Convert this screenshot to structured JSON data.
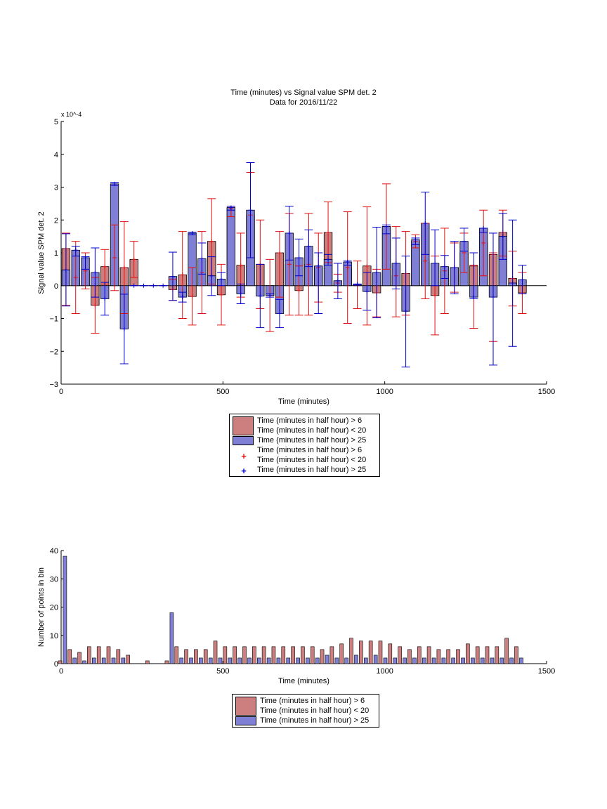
{
  "colors": {
    "red": "#cd7e7e",
    "red_edge": "#e01010",
    "blue": "#7f7fd5",
    "blue_edge": "#0000cc",
    "axis": "#000000"
  },
  "chart_data": [
    {
      "type": "bar",
      "title": "Time (minutes) vs Signal value SPM det. 2",
      "subtitle": "Data for 2016/11/22",
      "xlabel": "Time (minutes)",
      "ylabel": "Signal value SPM det. 2",
      "xlim": [
        0,
        1500
      ],
      "ylim": [
        -3,
        5
      ],
      "yexponent": "x 10^-4",
      "xticks": [
        "0",
        "500",
        "1000",
        "1500"
      ],
      "yticks": [
        "−3",
        "−2",
        "−1",
        "0",
        "1",
        "2",
        "3",
        "4",
        "5"
      ],
      "series": [
        {
          "name": "Time (minutes in half hour) > 6 Time (minutes in half hour) < 20",
          "color": "red",
          "points": [
            {
              "x": 15,
              "y": 1.13,
              "lo": -0.6,
              "hi": 1.6
            },
            {
              "x": 45,
              "y": 0.25,
              "lo": -0.85,
              "hi": 1.35
            },
            {
              "x": 75,
              "y": 0.45,
              "lo": -0.1,
              "hi": 1.0
            },
            {
              "x": 105,
              "y": -0.6,
              "lo": -1.45,
              "hi": 0.25
            },
            {
              "x": 135,
              "y": 0.58,
              "lo": 0.05,
              "hi": 1.1
            },
            {
              "x": 165,
              "y": 0.85,
              "lo": -0.15,
              "hi": 1.85
            },
            {
              "x": 195,
              "y": 0.55,
              "lo": -0.85,
              "hi": 1.95
            },
            {
              "x": 225,
              "y": 0.8,
              "lo": 0.25,
              "hi": 1.35
            },
            {
              "x": 345,
              "y": -0.12,
              "lo": -0.45,
              "hi": 0.2
            },
            {
              "x": 375,
              "y": 0.33,
              "lo": -1.0,
              "hi": 1.65
            },
            {
              "x": 405,
              "y": -0.33,
              "lo": -1.2,
              "hi": 0.55
            },
            {
              "x": 435,
              "y": 0.4,
              "lo": -0.85,
              "hi": 1.65
            },
            {
              "x": 465,
              "y": 1.35,
              "lo": 0.05,
              "hi": 2.65
            },
            {
              "x": 495,
              "y": -0.28,
              "lo": -1.2,
              "hi": 0.65
            },
            {
              "x": 525,
              "y": 2.35,
              "lo": 2.1,
              "hi": 2.42
            },
            {
              "x": 555,
              "y": 0.62,
              "lo": -0.35,
              "hi": 1.6
            },
            {
              "x": 585,
              "y": 2.15,
              "lo": 0.85,
              "hi": 3.45
            },
            {
              "x": 615,
              "y": 0.65,
              "lo": -0.7,
              "hi": 2.0
            },
            {
              "x": 645,
              "y": -0.3,
              "lo": -1.4,
              "hi": 0.8
            },
            {
              "x": 675,
              "y": 1.0,
              "lo": -0.35,
              "hi": 1.65
            },
            {
              "x": 705,
              "y": 0.65,
              "lo": -0.9,
              "hi": 2.2
            },
            {
              "x": 735,
              "y": -0.15,
              "lo": -0.9,
              "hi": 0.6
            },
            {
              "x": 765,
              "y": 0.65,
              "lo": -0.9,
              "hi": 2.2
            },
            {
              "x": 795,
              "y": 0.55,
              "lo": -0.5,
              "hi": 1.6
            },
            {
              "x": 825,
              "y": 1.62,
              "lo": 0.7,
              "hi": 2.55
            },
            {
              "x": 855,
              "y": 0.08,
              "lo": -0.2,
              "hi": 0.35
            },
            {
              "x": 885,
              "y": 0.55,
              "lo": -1.15,
              "hi": 2.25
            },
            {
              "x": 915,
              "y": 0.03,
              "lo": -0.7,
              "hi": 0.75
            },
            {
              "x": 945,
              "y": 0.6,
              "lo": -1.2,
              "hi": 2.4
            },
            {
              "x": 975,
              "y": -0.22,
              "lo": -0.95,
              "hi": 0.5
            },
            {
              "x": 1005,
              "y": 1.8,
              "lo": 0.5,
              "hi": 3.1
            },
            {
              "x": 1035,
              "y": 0.3,
              "lo": -0.95,
              "hi": 1.8
            },
            {
              "x": 1065,
              "y": 0.37,
              "lo": -0.9,
              "hi": 1.65
            },
            {
              "x": 1095,
              "y": 1.35,
              "lo": 1.15,
              "hi": 1.55
            },
            {
              "x": 1125,
              "y": 0.75,
              "lo": -0.4,
              "hi": 1.9
            },
            {
              "x": 1155,
              "y": -0.3,
              "lo": -1.5,
              "hi": 0.9
            },
            {
              "x": 1185,
              "y": 0.45,
              "lo": -0.85,
              "hi": 1.75
            },
            {
              "x": 1215,
              "y": 0.55,
              "lo": -0.2,
              "hi": 1.3
            },
            {
              "x": 1245,
              "y": 1.0,
              "lo": 0.4,
              "hi": 1.6
            },
            {
              "x": 1275,
              "y": 0.6,
              "lo": -1.3,
              "hi": 0.62
            },
            {
              "x": 1305,
              "y": 1.3,
              "lo": 0.3,
              "hi": 2.3
            },
            {
              "x": 1335,
              "y": 0.95,
              "lo": -1.7,
              "hi": 1.0
            },
            {
              "x": 1365,
              "y": 1.62,
              "lo": 0.9,
              "hi": 2.3
            },
            {
              "x": 1395,
              "y": 0.22,
              "lo": -0.62,
              "hi": 1.05
            },
            {
              "x": 1425,
              "y": -0.22,
              "lo": -0.85,
              "hi": 0.4
            }
          ]
        },
        {
          "name": "Time (minutes in half hour) > 25",
          "color": "blue",
          "points": [
            {
              "x": 15,
              "y": 0.48,
              "lo": -0.62,
              "hi": 1.58
            },
            {
              "x": 45,
              "y": 1.08,
              "lo": 0.9,
              "hi": 1.2
            },
            {
              "x": 75,
              "y": 0.85,
              "lo": 0.5,
              "hi": 0.88
            },
            {
              "x": 105,
              "y": 0.4,
              "lo": -0.35,
              "hi": 1.15
            },
            {
              "x": 135,
              "y": -0.4,
              "lo": -0.9,
              "hi": 0.1
            },
            {
              "x": 165,
              "y": 3.1,
              "lo": 3.05,
              "hi": 3.15
            },
            {
              "x": 195,
              "y": -1.32,
              "lo": -2.38,
              "hi": -0.26
            },
            {
              "x": 225,
              "y": 0.0,
              "lo": 0.0,
              "hi": 0.0
            },
            {
              "x": 255,
              "y": 0.0,
              "lo": 0.0,
              "hi": 0.0
            },
            {
              "x": 285,
              "y": 0.0,
              "lo": 0.0,
              "hi": 0.0
            },
            {
              "x": 315,
              "y": 0.0,
              "lo": 0.0,
              "hi": 0.0
            },
            {
              "x": 345,
              "y": 0.28,
              "lo": -0.45,
              "hi": 1.02
            },
            {
              "x": 375,
              "y": -0.35,
              "lo": -0.5,
              "hi": -0.2
            },
            {
              "x": 405,
              "y": 1.6,
              "lo": 1.55,
              "hi": 1.63
            },
            {
              "x": 435,
              "y": 0.82,
              "lo": 0.35,
              "hi": 1.3
            },
            {
              "x": 465,
              "y": 0.3,
              "lo": -0.3,
              "hi": 0.88
            },
            {
              "x": 495,
              "y": 0.2,
              "lo": 0.0,
              "hi": 0.4
            },
            {
              "x": 525,
              "y": 2.38,
              "lo": 2.3,
              "hi": 2.42
            },
            {
              "x": 555,
              "y": -0.25,
              "lo": -0.55,
              "hi": 0.05
            },
            {
              "x": 585,
              "y": 2.3,
              "lo": 0.85,
              "hi": 3.75
            },
            {
              "x": 615,
              "y": -0.32,
              "lo": -1.28,
              "hi": 0.65
            },
            {
              "x": 645,
              "y": -0.3,
              "lo": -0.35,
              "hi": -0.25
            },
            {
              "x": 675,
              "y": -0.85,
              "lo": -1.28,
              "hi": -0.42
            },
            {
              "x": 705,
              "y": 1.6,
              "lo": 0.78,
              "hi": 2.42
            },
            {
              "x": 735,
              "y": 0.85,
              "lo": 0.3,
              "hi": 1.42
            },
            {
              "x": 765,
              "y": 1.2,
              "lo": 0.58,
              "hi": 1.7
            },
            {
              "x": 795,
              "y": 0.6,
              "lo": -0.85,
              "hi": 1.0
            },
            {
              "x": 825,
              "y": 0.8,
              "lo": 0.62,
              "hi": 0.95
            },
            {
              "x": 855,
              "y": 0.15,
              "lo": -0.4,
              "hi": 0.68
            },
            {
              "x": 885,
              "y": 0.72,
              "lo": 0.62,
              "hi": 0.75
            },
            {
              "x": 915,
              "y": 0.05,
              "lo": 0.02,
              "hi": 0.05
            },
            {
              "x": 945,
              "y": -0.18,
              "lo": -0.75,
              "hi": 0.4
            },
            {
              "x": 975,
              "y": 0.4,
              "lo": -0.98,
              "hi": 1.78
            },
            {
              "x": 1005,
              "y": 1.8,
              "lo": 1.58,
              "hi": 1.85
            },
            {
              "x": 1035,
              "y": 0.68,
              "lo": -0.1,
              "hi": 1.45
            },
            {
              "x": 1065,
              "y": -0.78,
              "lo": -2.48,
              "hi": 0.9
            },
            {
              "x": 1095,
              "y": 1.4,
              "lo": 1.25,
              "hi": 1.45
            },
            {
              "x": 1125,
              "y": 1.9,
              "lo": 0.95,
              "hi": 2.85
            },
            {
              "x": 1155,
              "y": 0.68,
              "lo": 0.0,
              "hi": 1.7
            },
            {
              "x": 1185,
              "y": 0.58,
              "lo": 0.22,
              "hi": 0.92
            },
            {
              "x": 1215,
              "y": 0.55,
              "lo": -0.25,
              "hi": 1.35
            },
            {
              "x": 1245,
              "y": 1.35,
              "lo": 1.05,
              "hi": 1.75
            },
            {
              "x": 1275,
              "y": -0.35,
              "lo": -0.4,
              "hi": 1.0
            },
            {
              "x": 1305,
              "y": 1.75,
              "lo": 1.62,
              "hi": 1.75
            },
            {
              "x": 1335,
              "y": -0.35,
              "lo": -2.42,
              "hi": 1.6
            },
            {
              "x": 1365,
              "y": 1.5,
              "lo": 0.8,
              "hi": 2.2
            },
            {
              "x": 1395,
              "y": 0.08,
              "lo": -1.85,
              "hi": 2.0
            },
            {
              "x": 1425,
              "y": 0.18,
              "lo": -0.25,
              "hi": 0.62
            }
          ]
        }
      ],
      "legend": [
        {
          "kind": "bar",
          "color": "red",
          "lines": [
            "Time (minutes in half hour) > 6",
            "Time (minutes in half hour) < 20"
          ]
        },
        {
          "kind": "bar",
          "color": "blue",
          "lines": [
            "Time (minutes in half hour) > 25"
          ]
        },
        {
          "kind": "marker",
          "color": "red",
          "lines": [
            "Time (minutes in half hour) > 6",
            "Time (minutes in half hour) < 20"
          ]
        },
        {
          "kind": "marker",
          "color": "blue",
          "lines": [
            "Time (minutes in half hour) > 25"
          ]
        }
      ]
    },
    {
      "type": "bar",
      "title": "",
      "xlabel": "Time (minutes)",
      "ylabel": "Number of points in bin",
      "xlim": [
        0,
        1500
      ],
      "ylim": [
        0,
        40
      ],
      "xticks": [
        "0",
        "500",
        "1000",
        "1500"
      ],
      "yticks": [
        "0",
        "10",
        "20",
        "30",
        "40"
      ],
      "x": [
        15,
        45,
        75,
        105,
        135,
        165,
        195,
        225,
        255,
        285,
        315,
        345,
        375,
        405,
        435,
        465,
        495,
        525,
        555,
        585,
        615,
        645,
        675,
        705,
        735,
        765,
        795,
        825,
        855,
        885,
        915,
        945,
        975,
        1005,
        1035,
        1065,
        1095,
        1125,
        1155,
        1185,
        1215,
        1245,
        1275,
        1305,
        1335,
        1365,
        1395,
        1425
      ],
      "series": [
        {
          "name": "Time (minutes in half hour) > 6 Time (minutes in half hour) < 20",
          "color": "red",
          "values": [
            1,
            5,
            4,
            6,
            6,
            6,
            5,
            3,
            0,
            1,
            0,
            1,
            6,
            5,
            5,
            5,
            8,
            6,
            6,
            6,
            6,
            6,
            6,
            6,
            6,
            6,
            6,
            5,
            6,
            7,
            9,
            8,
            8,
            8,
            7,
            6,
            5,
            6,
            6,
            5,
            5,
            5,
            7,
            6,
            6,
            6,
            9,
            6
          ]
        },
        {
          "name": "Time (minutes in half hour) > 25",
          "color": "blue",
          "values": [
            38,
            2,
            1,
            2,
            2,
            2,
            2,
            0,
            0,
            0,
            0,
            18,
            2,
            2,
            2,
            2,
            2,
            2,
            2,
            2,
            2,
            2,
            2,
            2,
            2,
            2,
            2,
            3,
            2,
            2,
            3,
            2,
            3,
            2,
            2,
            2,
            2,
            2,
            2,
            2,
            2,
            2,
            2,
            2,
            2,
            2,
            2,
            2
          ]
        }
      ],
      "legend": [
        {
          "kind": "bar",
          "color": "red",
          "lines": [
            "Time (minutes in half hour) > 6",
            "Time (minutes in half hour) < 20"
          ]
        },
        {
          "kind": "bar",
          "color": "blue",
          "lines": [
            "Time (minutes in half hour) > 25"
          ]
        }
      ]
    }
  ]
}
